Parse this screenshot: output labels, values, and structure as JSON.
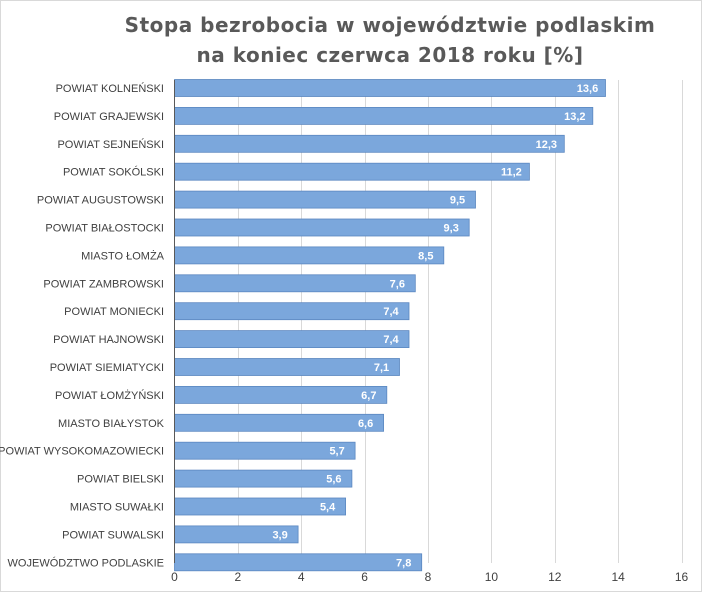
{
  "title_line1": "Stopa bezrobocia w województwie podlaskim",
  "title_line2": "na koniec czerwca 2018 roku [%]",
  "chart_data": {
    "type": "bar",
    "orientation": "horizontal",
    "title": "Stopa bezrobocia w województwie podlaskim na koniec czerwca 2018 roku [%]",
    "categories": [
      "POWIAT KOLNEŃSKI",
      "POWIAT GRAJEWSKI",
      "POWIAT SEJNEŃSKI",
      "POWIAT SOKÓLSKI",
      "POWIAT AUGUSTOWSKI",
      "POWIAT BIAŁOSTOCKI",
      "MIASTO ŁOMŻA",
      "POWIAT ZAMBROWSKI",
      "POWIAT MONIECKI",
      "POWIAT HAJNOWSKI",
      "POWIAT SIEMIATYCKI",
      "POWIAT ŁOMŻYŃSKI",
      "MIASTO BIAŁYSTOK",
      "POWIAT WYSOKOMAZOWIECKI",
      "POWIAT BIELSKI",
      "MIASTO SUWAŁKI",
      "POWIAT SUWALSKI",
      "WOJEWÓDZTWO PODLASKIE"
    ],
    "values": [
      13.6,
      13.2,
      12.3,
      11.2,
      9.5,
      9.3,
      8.5,
      7.6,
      7.4,
      7.4,
      7.1,
      6.7,
      6.6,
      5.7,
      5.6,
      5.4,
      3.9,
      7.8
    ],
    "data_labels": [
      "13,6",
      "13,2",
      "12,3",
      "11,2",
      "9,5",
      "9,3",
      "8,5",
      "7,6",
      "7,4",
      "7,4",
      "7,1",
      "6,7",
      "6,6",
      "5,7",
      "5,6",
      "5,4",
      "3,9",
      "7,8"
    ],
    "xlim": [
      0,
      16
    ],
    "xticks": [
      0,
      2,
      4,
      6,
      8,
      10,
      12,
      14,
      16
    ],
    "grid": true,
    "bar_color": "#7ba7dc",
    "bar_edge_color": "#5b87c0",
    "grid_color": "#d9d9d9",
    "label_color": "#ffffff",
    "text_color": "#404040"
  }
}
